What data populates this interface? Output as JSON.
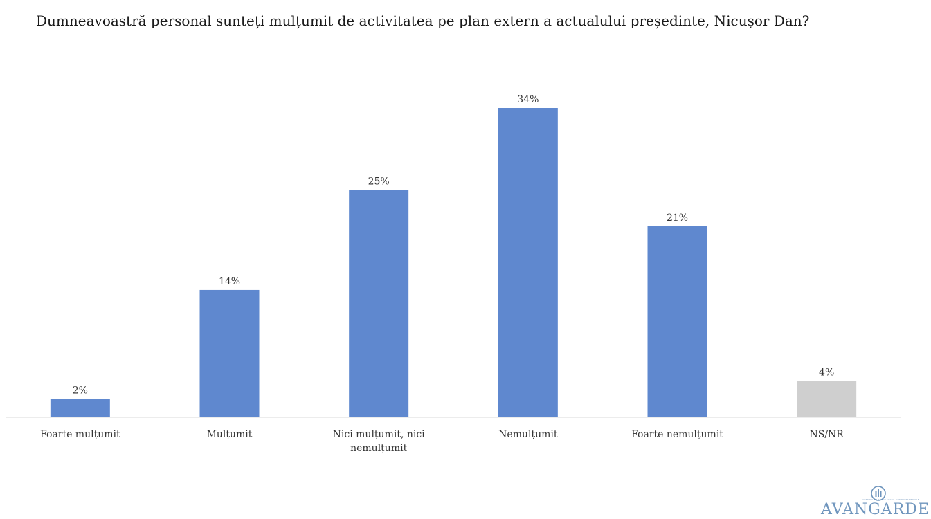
{
  "chart_data": {
    "type": "bar",
    "title": "Dumneavoastră personal sunteți mulțumit de activitatea pe plan extern a actualului președinte, Nicușor Dan?",
    "categories": [
      [
        "Foarte mulțumit"
      ],
      [
        "Mulțumit"
      ],
      [
        "Nici mulțumit, nici",
        "nemulțumit"
      ],
      [
        "Nemulțumit"
      ],
      [
        "Foarte nemulțumit"
      ],
      [
        "NS/NR"
      ]
    ],
    "values": [
      2,
      14,
      25,
      34,
      21,
      4
    ],
    "value_labels": [
      "2%",
      "14%",
      "25%",
      "34%",
      "21%",
      "4%"
    ],
    "bar_colors": [
      "#5f88cf",
      "#5f88cf",
      "#5f88cf",
      "#5f88cf",
      "#5f88cf",
      "#cfcfcf"
    ],
    "ylim": [
      0,
      34
    ],
    "grid": false,
    "legend": "none"
  },
  "brand": {
    "name": "AVANGARDE",
    "tagline": "CENTRUL DE STUDII SOCIAL-COMPORTAMENTALE"
  }
}
